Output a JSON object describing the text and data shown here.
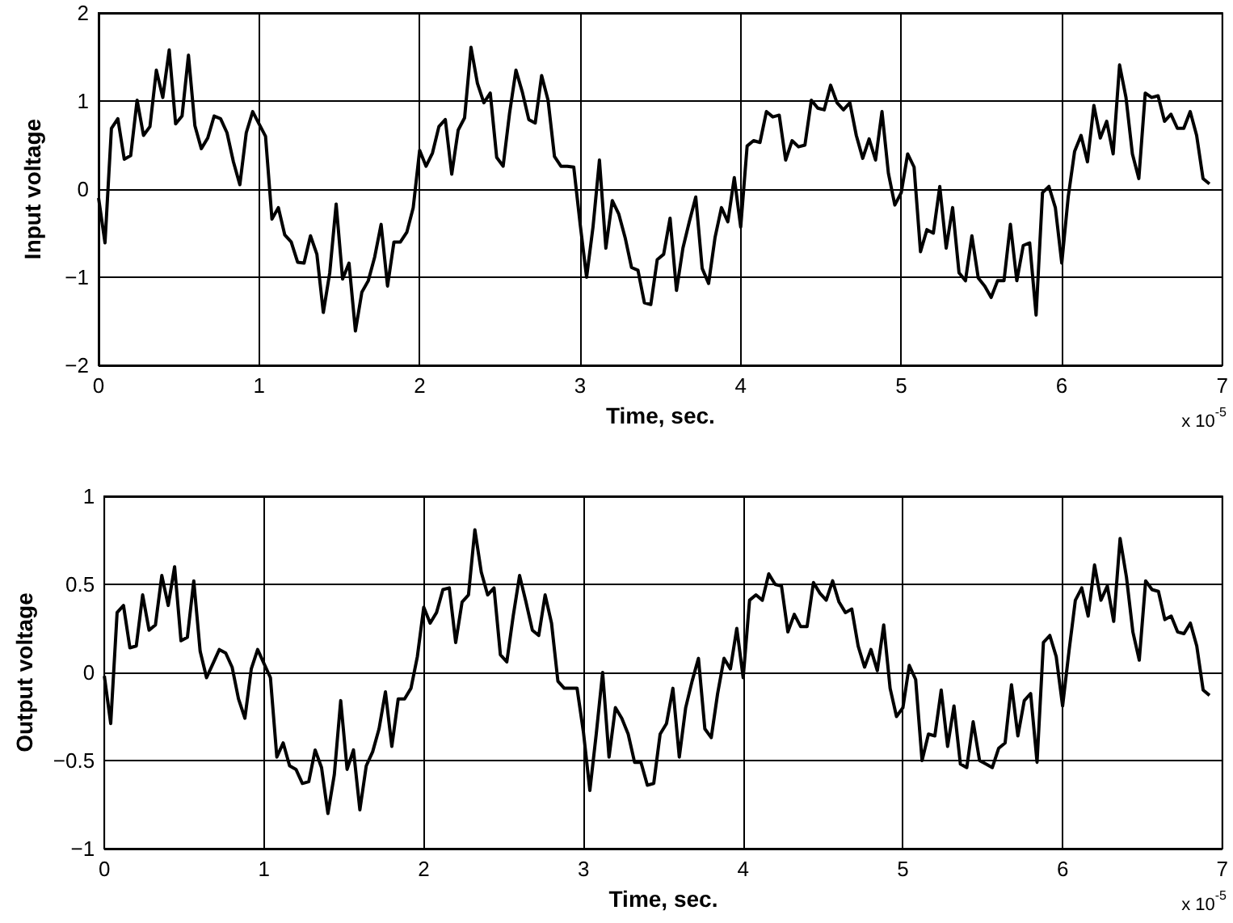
{
  "chart_data": [
    {
      "type": "line",
      "xlabel": "Time, sec.",
      "ylabel": "Input voltage",
      "annotations": [
        "x 10$^{-5}$"
      ],
      "x": [
        0,
        0.04,
        0.08,
        0.12,
        0.16,
        0.2,
        0.24,
        0.28,
        0.32,
        0.36,
        0.4,
        0.44,
        0.48,
        0.52,
        0.56,
        0.6,
        0.64,
        0.68,
        0.72,
        0.76,
        0.8,
        0.84,
        0.88,
        0.92,
        0.96,
        1.0,
        1.04,
        1.08,
        1.12,
        1.16,
        1.2,
        1.24,
        1.28,
        1.32,
        1.36,
        1.4,
        1.44,
        1.48,
        1.52,
        1.56,
        1.6,
        1.64,
        1.68,
        1.72,
        1.76,
        1.8,
        1.84,
        1.88,
        1.92,
        1.96,
        2.0,
        2.04,
        2.08,
        2.12,
        2.16,
        2.2,
        2.24,
        2.28,
        2.32,
        2.36,
        2.4,
        2.44,
        2.48,
        2.52,
        2.56,
        2.6,
        2.64,
        2.68,
        2.72,
        2.76,
        2.8,
        2.84,
        2.88,
        2.92,
        2.96,
        3.0,
        3.04,
        3.08,
        3.12,
        3.16,
        3.2,
        3.24,
        3.28,
        3.32,
        3.36,
        3.4,
        3.44,
        3.48,
        3.52,
        3.56,
        3.6,
        3.64,
        3.68,
        3.72,
        3.76,
        3.8,
        3.84,
        3.88,
        3.92,
        3.96,
        4.0,
        4.04,
        4.08,
        4.12,
        4.16,
        4.2,
        4.24,
        4.28,
        4.32,
        4.36,
        4.4,
        4.44,
        4.48,
        4.52,
        4.56,
        4.6,
        4.64,
        4.68,
        4.72,
        4.76,
        4.8,
        4.84,
        4.88,
        4.92,
        4.96,
        5.0,
        5.04,
        5.08,
        5.12,
        5.16,
        5.2,
        5.24,
        5.28,
        5.32,
        5.36,
        5.4,
        5.44,
        5.48,
        5.52,
        5.56,
        5.6,
        5.64,
        5.68,
        5.72,
        5.76,
        5.8,
        5.84,
        5.88,
        5.92,
        5.96,
        6.0,
        6.04,
        6.08,
        6.12,
        6.16,
        6.2,
        6.24,
        6.28,
        6.32,
        6.36,
        6.4,
        6.44,
        6.48,
        6.52,
        6.56,
        6.6,
        6.64,
        6.68,
        6.72,
        6.76,
        6.8,
        6.84,
        6.88,
        6.92
      ],
      "series": [
        {
          "color": "#000000",
          "values": [
            -0.1,
            -0.61,
            0.69,
            0.8,
            0.34,
            0.38,
            1.01,
            0.61,
            0.71,
            1.35,
            1.04,
            1.58,
            0.74,
            0.83,
            1.52,
            0.72,
            0.46,
            0.58,
            0.83,
            0.8,
            0.64,
            0.31,
            0.05,
            0.64,
            0.88,
            0.74,
            0.6,
            -0.34,
            -0.21,
            -0.52,
            -0.6,
            -0.83,
            -0.84,
            -0.53,
            -0.74,
            -1.4,
            -0.95,
            -0.17,
            -1.02,
            -0.84,
            -1.61,
            -1.17,
            -1.04,
            -0.77,
            -0.4,
            -1.1,
            -0.6,
            -0.6,
            -0.49,
            -0.21,
            0.44,
            0.26,
            0.41,
            0.71,
            0.79,
            0.17,
            0.67,
            0.81,
            1.61,
            1.2,
            0.98,
            1.09,
            0.36,
            0.26,
            0.86,
            1.35,
            1.1,
            0.79,
            0.75,
            1.29,
            1.01,
            0.37,
            0.26,
            0.26,
            0.25,
            -0.4,
            -1.0,
            -0.43,
            0.33,
            -0.67,
            -0.13,
            -0.28,
            -0.55,
            -0.89,
            -0.92,
            -1.29,
            -1.31,
            -0.8,
            -0.74,
            -0.33,
            -1.15,
            -0.67,
            -0.37,
            -0.09,
            -0.9,
            -1.07,
            -0.55,
            -0.21,
            -0.37,
            0.13,
            -0.43,
            0.49,
            0.55,
            0.53,
            0.88,
            0.82,
            0.84,
            0.33,
            0.55,
            0.48,
            0.5,
            1.01,
            0.92,
            0.9,
            1.18,
            0.98,
            0.9,
            0.98,
            0.61,
            0.35,
            0.57,
            0.33,
            0.88,
            0.18,
            -0.18,
            -0.04,
            0.4,
            0.25,
            -0.71,
            -0.46,
            -0.5,
            0.03,
            -0.67,
            -0.21,
            -0.95,
            -1.04,
            -0.53,
            -1.01,
            -1.1,
            -1.23,
            -1.04,
            -1.04,
            -0.4,
            -1.04,
            -0.64,
            -0.61,
            -1.43,
            -0.04,
            0.03,
            -0.21,
            -0.84,
            -0.09,
            0.43,
            0.61,
            0.31,
            0.95,
            0.58,
            0.77,
            0.4,
            1.41,
            1.04,
            0.4,
            0.12,
            1.09,
            1.04,
            1.06,
            0.77,
            0.85,
            0.69,
            0.69,
            0.88,
            0.61,
            0.12,
            0.06
          ]
        }
      ],
      "xlim": [
        0,
        7
      ],
      "xticks": [
        0,
        1,
        2,
        3,
        4,
        5,
        6,
        7
      ],
      "ylim": [
        -2,
        2
      ],
      "yticks": [
        -2,
        -1,
        0,
        1,
        2
      ],
      "grid": true,
      "marker": "none",
      "line_style": "solid"
    },
    {
      "type": "line",
      "xlabel": "Time, sec.",
      "ylabel": "Output voltage",
      "annotations": [
        "x 10$^{-5}$"
      ],
      "x": [
        0,
        0.04,
        0.08,
        0.12,
        0.16,
        0.2,
        0.24,
        0.28,
        0.32,
        0.36,
        0.4,
        0.44,
        0.48,
        0.52,
        0.56,
        0.6,
        0.64,
        0.68,
        0.72,
        0.76,
        0.8,
        0.84,
        0.88,
        0.92,
        0.96,
        1.0,
        1.04,
        1.08,
        1.12,
        1.16,
        1.2,
        1.24,
        1.28,
        1.32,
        1.36,
        1.4,
        1.44,
        1.48,
        1.52,
        1.56,
        1.6,
        1.64,
        1.68,
        1.72,
        1.76,
        1.8,
        1.84,
        1.88,
        1.92,
        1.96,
        2.0,
        2.04,
        2.08,
        2.12,
        2.16,
        2.2,
        2.24,
        2.28,
        2.32,
        2.36,
        2.4,
        2.44,
        2.48,
        2.52,
        2.56,
        2.6,
        2.64,
        2.68,
        2.72,
        2.76,
        2.8,
        2.84,
        2.88,
        2.92,
        2.96,
        3.0,
        3.04,
        3.08,
        3.12,
        3.16,
        3.2,
        3.24,
        3.28,
        3.32,
        3.36,
        3.4,
        3.44,
        3.48,
        3.52,
        3.56,
        3.6,
        3.64,
        3.68,
        3.72,
        3.76,
        3.8,
        3.84,
        3.88,
        3.92,
        3.96,
        4.0,
        4.04,
        4.08,
        4.12,
        4.16,
        4.2,
        4.24,
        4.28,
        4.32,
        4.36,
        4.4,
        4.44,
        4.48,
        4.52,
        4.56,
        4.6,
        4.64,
        4.68,
        4.72,
        4.76,
        4.8,
        4.84,
        4.88,
        4.92,
        4.96,
        5.0,
        5.04,
        5.08,
        5.12,
        5.16,
        5.2,
        5.24,
        5.28,
        5.32,
        5.36,
        5.4,
        5.44,
        5.48,
        5.52,
        5.56,
        5.6,
        5.64,
        5.68,
        5.72,
        5.76,
        5.8,
        5.84,
        5.88,
        5.92,
        5.96,
        6.0,
        6.04,
        6.08,
        6.12,
        6.16,
        6.2,
        6.24,
        6.28,
        6.32,
        6.36,
        6.4,
        6.44,
        6.48,
        6.52,
        6.56,
        6.6,
        6.64,
        6.68,
        6.72,
        6.76,
        6.8,
        6.84,
        6.88,
        6.92
      ],
      "series": [
        {
          "color": "#000000",
          "values": [
            -0.02,
            -0.29,
            0.34,
            0.38,
            0.14,
            0.15,
            0.44,
            0.24,
            0.27,
            0.55,
            0.38,
            0.6,
            0.18,
            0.2,
            0.52,
            0.12,
            -0.03,
            0.05,
            0.13,
            0.11,
            0.03,
            -0.15,
            -0.26,
            0.02,
            0.13,
            0.05,
            -0.03,
            -0.48,
            -0.4,
            -0.53,
            -0.55,
            -0.63,
            -0.62,
            -0.44,
            -0.54,
            -0.8,
            -0.58,
            -0.16,
            -0.55,
            -0.44,
            -0.78,
            -0.53,
            -0.45,
            -0.32,
            -0.11,
            -0.42,
            -0.15,
            -0.15,
            -0.09,
            0.09,
            0.37,
            0.28,
            0.34,
            0.47,
            0.48,
            0.17,
            0.4,
            0.44,
            0.81,
            0.57,
            0.44,
            0.48,
            0.1,
            0.06,
            0.32,
            0.55,
            0.4,
            0.24,
            0.21,
            0.44,
            0.28,
            -0.05,
            -0.09,
            -0.09,
            -0.09,
            -0.34,
            -0.67,
            -0.35,
            0.0,
            -0.48,
            -0.2,
            -0.26,
            -0.35,
            -0.51,
            -0.51,
            -0.64,
            -0.63,
            -0.35,
            -0.29,
            -0.09,
            -0.48,
            -0.2,
            -0.05,
            0.08,
            -0.32,
            -0.37,
            -0.12,
            0.08,
            0.02,
            0.25,
            -0.03,
            0.41,
            0.44,
            0.41,
            0.56,
            0.5,
            0.49,
            0.23,
            0.33,
            0.26,
            0.26,
            0.51,
            0.45,
            0.41,
            0.52,
            0.4,
            0.34,
            0.36,
            0.15,
            0.03,
            0.13,
            0.01,
            0.27,
            -0.09,
            -0.25,
            -0.2,
            0.04,
            -0.04,
            -0.5,
            -0.35,
            -0.36,
            -0.1,
            -0.42,
            -0.19,
            -0.52,
            -0.54,
            -0.28,
            -0.5,
            -0.52,
            -0.54,
            -0.43,
            -0.4,
            -0.07,
            -0.36,
            -0.16,
            -0.12,
            -0.51,
            0.17,
            0.21,
            0.09,
            -0.19,
            0.12,
            0.41,
            0.48,
            0.32,
            0.61,
            0.41,
            0.49,
            0.29,
            0.76,
            0.54,
            0.23,
            0.07,
            0.52,
            0.47,
            0.46,
            0.3,
            0.32,
            0.23,
            0.22,
            0.28,
            0.15,
            -0.1,
            -0.13
          ]
        }
      ],
      "xlim": [
        0,
        7
      ],
      "xticks": [
        0,
        1,
        2,
        3,
        4,
        5,
        6,
        7
      ],
      "ylim": [
        -1,
        1
      ],
      "yticks": [
        -1,
        -0.5,
        0,
        0.5,
        1
      ],
      "grid": true,
      "marker": "none",
      "line_style": "solid"
    }
  ]
}
